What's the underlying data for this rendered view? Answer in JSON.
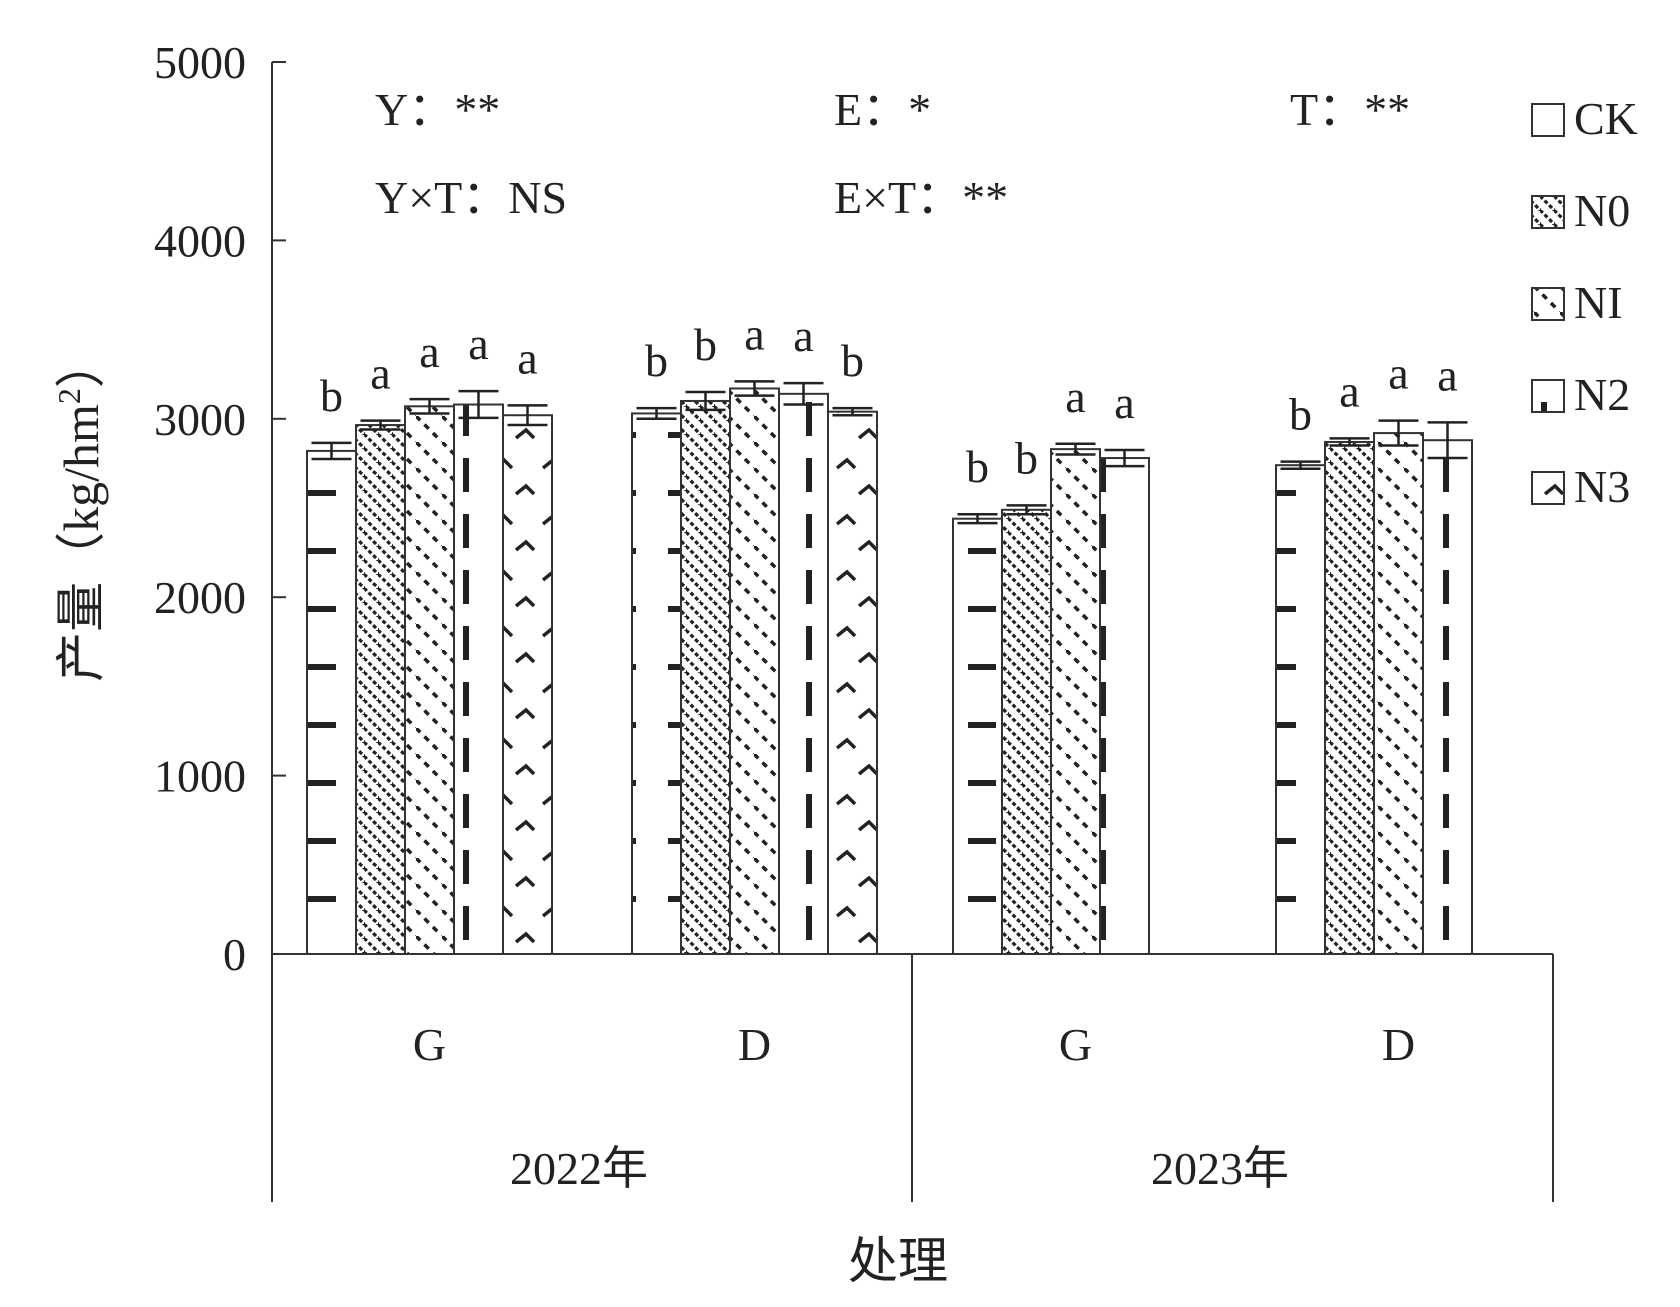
{
  "chart_data": {
    "type": "bar",
    "ylabel": "产量（kg/hm",
    "ylabel_sup": "2",
    "ylabel_close": "）",
    "xlabel": "处理",
    "ylim": [
      0,
      5000
    ],
    "yticks": [
      "0",
      "1000",
      "2000",
      "3000",
      "4000",
      "5000"
    ],
    "legend_position": "top-right",
    "legend": [
      {
        "key": "CK",
        "label": "CK",
        "pattern": "dash-h"
      },
      {
        "key": "N0",
        "label": "N0",
        "pattern": "diag-dense"
      },
      {
        "key": "NI",
        "label": "NI",
        "pattern": "diag-sparse"
      },
      {
        "key": "N2",
        "label": "N2",
        "pattern": "dash-v"
      },
      {
        "key": "N3",
        "label": "N3",
        "pattern": "chevron"
      }
    ],
    "stats": [
      {
        "text": "Y：**"
      },
      {
        "text": "E：*"
      },
      {
        "text": "T：**"
      },
      {
        "text": "Y×T：NS"
      },
      {
        "text": "E×T：**"
      }
    ],
    "years": [
      "2022年",
      "2023年"
    ],
    "groups": [
      {
        "label": "G",
        "year": "2022年",
        "bars": [
          {
            "series": "CK",
            "value": 2820,
            "err": 45,
            "sig": "b"
          },
          {
            "series": "N0",
            "value": 2965,
            "err": 25,
            "sig": "a"
          },
          {
            "series": "NI",
            "value": 3070,
            "err": 40,
            "sig": "a"
          },
          {
            "series": "N2",
            "value": 3080,
            "err": 75,
            "sig": "a"
          },
          {
            "series": "N3",
            "value": 3020,
            "err": 55,
            "sig": "a"
          }
        ]
      },
      {
        "label": "D",
        "year": "2022年",
        "bars": [
          {
            "series": "CK",
            "value": 3030,
            "err": 30,
            "sig": "b"
          },
          {
            "series": "N0",
            "value": 3100,
            "err": 50,
            "sig": "b"
          },
          {
            "series": "NI",
            "value": 3170,
            "err": 40,
            "sig": "a"
          },
          {
            "series": "N2",
            "value": 3140,
            "err": 60,
            "sig": "a"
          },
          {
            "series": "N3",
            "value": 3040,
            "err": 20,
            "sig": "b"
          }
        ]
      },
      {
        "label": "G",
        "year": "2023年",
        "bars": [
          {
            "series": "CK",
            "value": 2440,
            "err": 25,
            "sig": "b"
          },
          {
            "series": "N0",
            "value": 2490,
            "err": 25,
            "sig": "b"
          },
          {
            "series": "NI",
            "value": 2830,
            "err": 30,
            "sig": "a"
          },
          {
            "series": "N2",
            "value": 2780,
            "err": 45,
            "sig": "a"
          }
        ]
      },
      {
        "label": "D",
        "year": "2023年",
        "bars": [
          {
            "series": "CK",
            "value": 2740,
            "err": 20,
            "sig": "b"
          },
          {
            "series": "N0",
            "value": 2870,
            "err": 20,
            "sig": "a"
          },
          {
            "series": "NI",
            "value": 2920,
            "err": 70,
            "sig": "a"
          },
          {
            "series": "N2",
            "value": 2880,
            "err": 100,
            "sig": "a"
          }
        ]
      }
    ]
  }
}
